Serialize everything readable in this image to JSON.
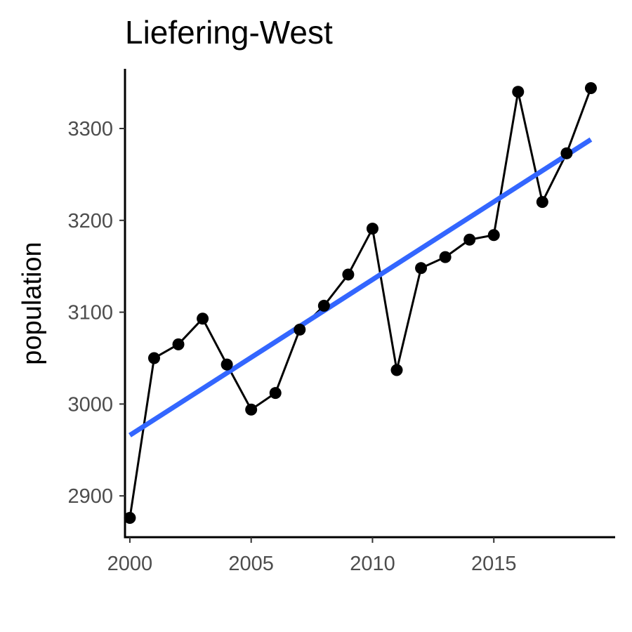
{
  "chart_data": {
    "type": "line",
    "title": "Liefering-West",
    "xlabel": "",
    "ylabel": "population",
    "x": [
      2000,
      2001,
      2002,
      2003,
      2004,
      2005,
      2006,
      2007,
      2008,
      2009,
      2010,
      2011,
      2012,
      2013,
      2014,
      2015,
      2016,
      2017,
      2018,
      2019
    ],
    "series": [
      {
        "values": [
          2876,
          3050,
          3065,
          3093,
          3043,
          2994,
          3012,
          3081,
          3107,
          3141,
          3191,
          3037,
          3148,
          3160,
          3179,
          3184,
          3340,
          3220,
          3273,
          3344
        ],
        "color": "#000000"
      }
    ],
    "trend": {
      "method": "linear",
      "from": [
        2000,
        2966
      ],
      "to": [
        2019,
        3288
      ],
      "color": "#3366ff"
    },
    "xlim": [
      1999.8,
      2020
    ],
    "ylim": [
      2855,
      3365
    ],
    "xticks": [
      "2000",
      "2005",
      "2010",
      "2015"
    ],
    "yticks": [
      "2900",
      "3000",
      "3100",
      "3200",
      "3300"
    ],
    "grid": false,
    "legend": "none"
  }
}
